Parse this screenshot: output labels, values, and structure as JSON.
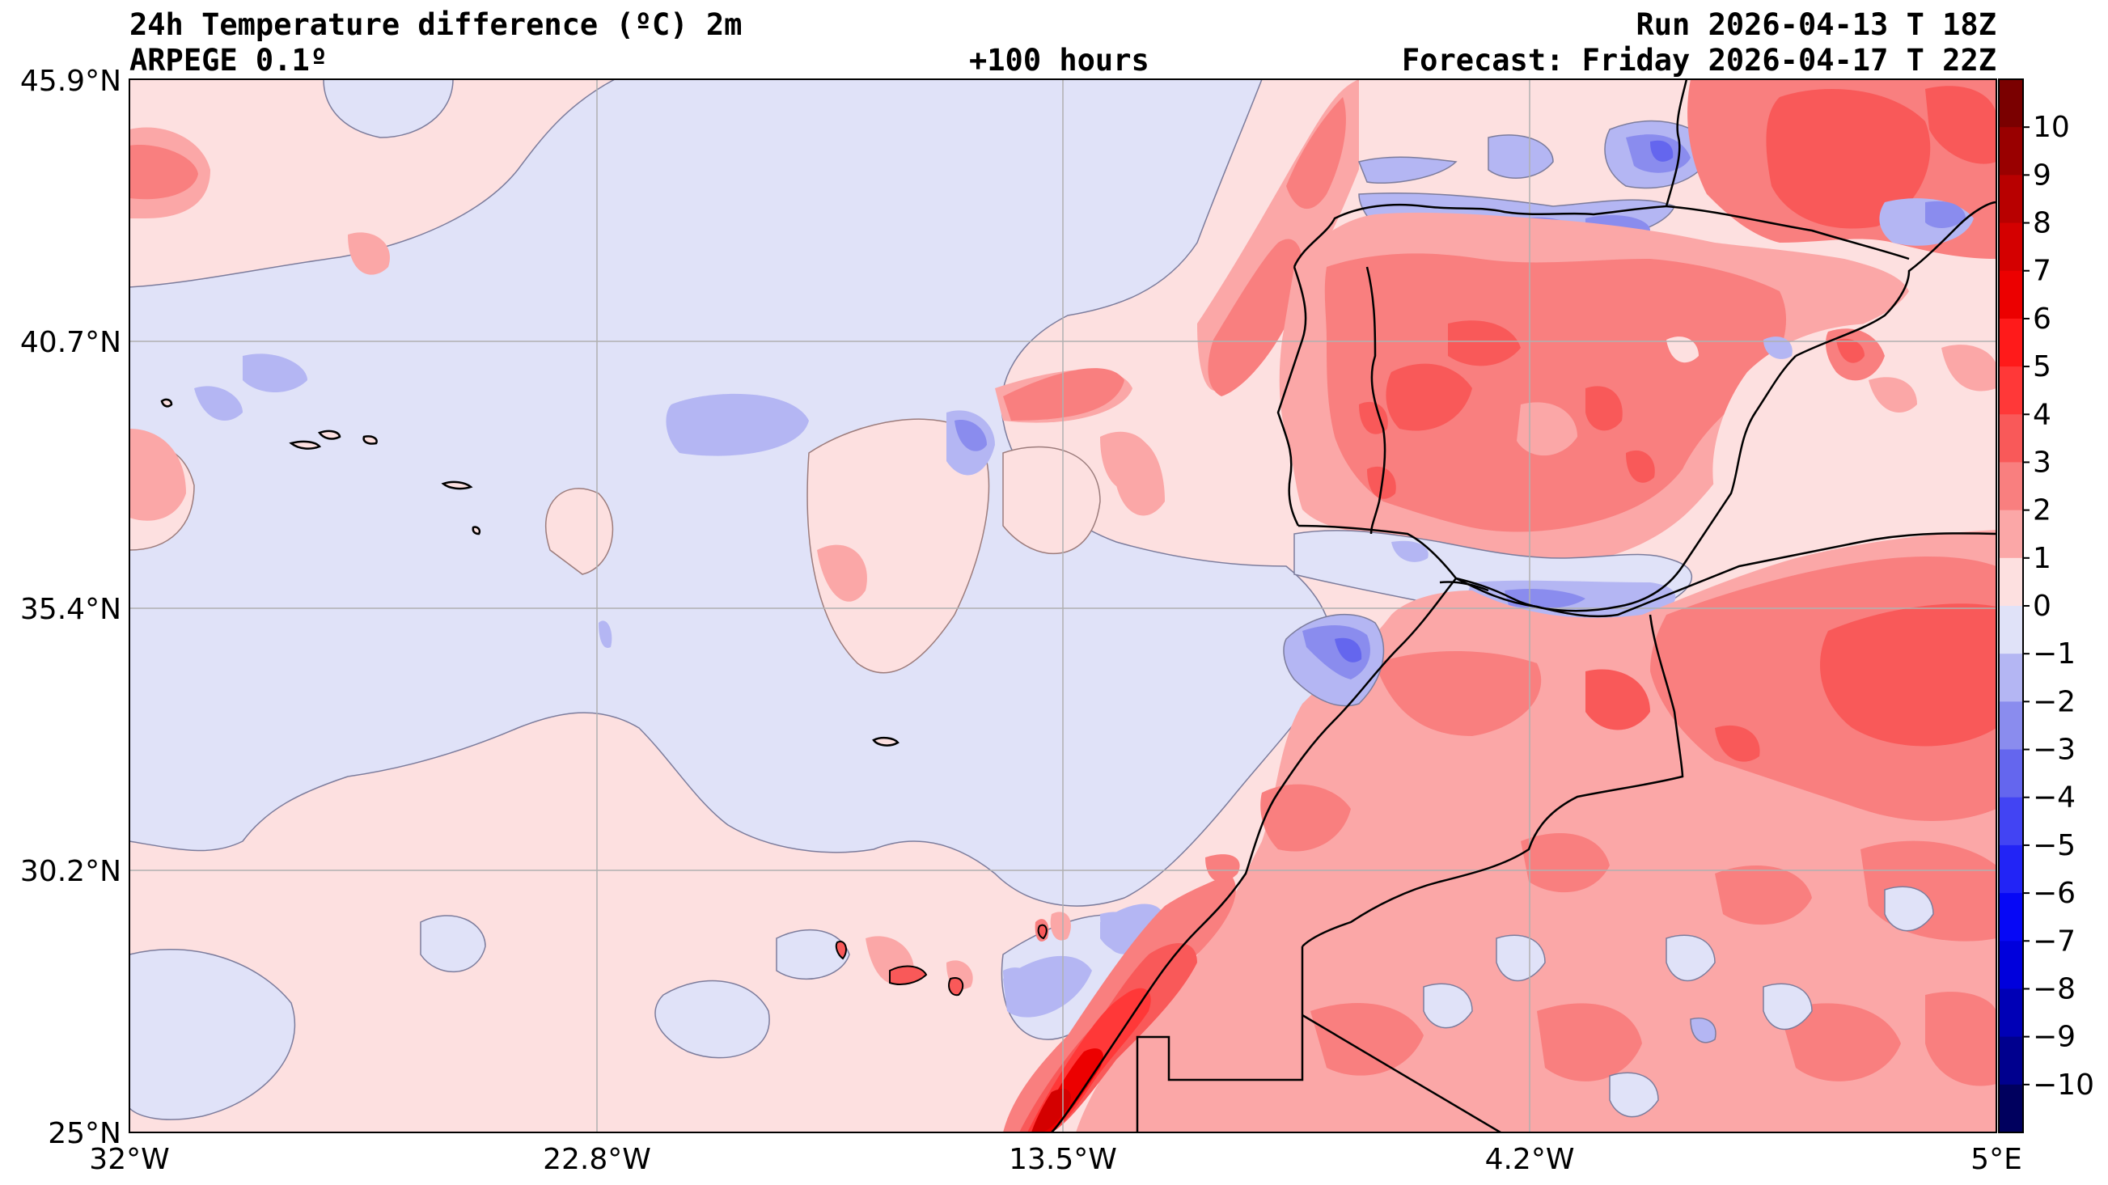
{
  "header": {
    "title": "24h Temperature difference (ºC) 2m",
    "model": "ARPEGE 0.1º",
    "step": "+100 hours",
    "run": "Run 2026-04-13 T 18Z",
    "forecast": "Forecast: Friday 2026-04-17 T 22Z"
  },
  "axes": {
    "lon_labels": [
      "32°W",
      "22.8°W",
      "13.5°W",
      "4.2°W",
      "5°E"
    ],
    "lat_labels": [
      "45.9°N",
      "40.7°N",
      "35.4°N",
      "30.2°N",
      "25°N"
    ],
    "lon_range": [
      -32,
      5
    ],
    "lat_range": [
      25,
      45.9
    ],
    "grid": true
  },
  "colorbar": {
    "levels": [
      -11,
      -10,
      -9,
      -8,
      -7,
      -6,
      -5,
      -4,
      -3,
      -2,
      -1,
      0,
      1,
      2,
      3,
      4,
      5,
      6,
      7,
      8,
      9,
      10,
      11
    ],
    "tick_labels": [
      "10",
      "9",
      "8",
      "7",
      "6",
      "5",
      "4",
      "3",
      "2",
      "1",
      "0",
      "−1",
      "−2",
      "−3",
      "−4",
      "−5",
      "−6",
      "−7",
      "−8",
      "−9",
      "−10"
    ],
    "colors_top_to_bottom": [
      "#7a0000",
      "#990000",
      "#b80000",
      "#d40000",
      "#ec0000",
      "#ff1a1a",
      "#ff3838",
      "#f95959",
      "#f97f7f",
      "#fba7a7",
      "#fde0e0",
      "#e0e2f8",
      "#b4b6f3",
      "#8a8cee",
      "#6466ee",
      "#4244f3",
      "#2224f6",
      "#0608f6",
      "#0000dc",
      "#0000b6",
      "#00008e",
      "#00005e"
    ]
  },
  "colors": {
    "ocean_neutral_warm": "#fde0e0",
    "ocean_neutral_cool": "#e0e2f8",
    "coastline": "#000000",
    "grid": "#b0b0b0"
  }
}
